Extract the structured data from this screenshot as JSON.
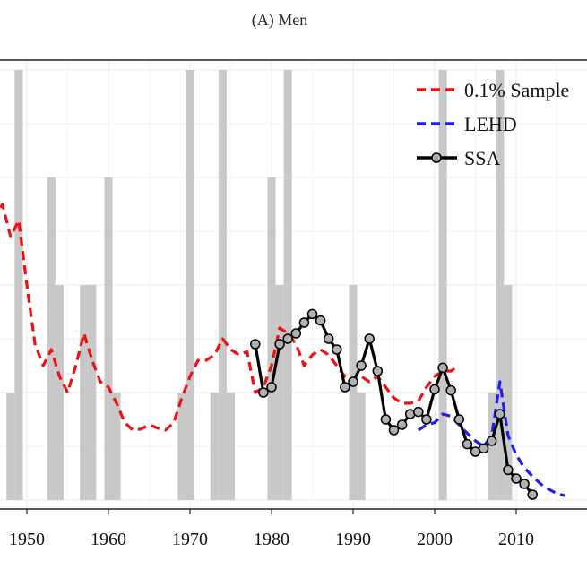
{
  "chart_data": {
    "type": "line",
    "title": "(A) Men",
    "xlabel": "",
    "ylabel": "",
    "xlim": [
      1945.5,
      2016
    ],
    "ylim": [
      0,
      4.6
    ],
    "x_ticks": [
      1950,
      1960,
      1970,
      1980,
      1990,
      2000,
      2010
    ],
    "x_tick_labels": [
      "1950",
      "1960",
      "1970",
      "1980",
      "1990",
      "2000",
      "2010"
    ],
    "grid": true,
    "legend_position": "top-right",
    "recession_bars": {
      "color": "#c8c8c8",
      "bars": [
        {
          "year": 1948,
          "height": 1.0
        },
        {
          "year": 1949,
          "height": 4.0
        },
        {
          "year": 1953,
          "height": 3.0
        },
        {
          "year": 1954,
          "height": 2.0
        },
        {
          "year": 1957,
          "height": 2.0
        },
        {
          "year": 1958,
          "height": 2.0
        },
        {
          "year": 1960,
          "height": 3.0
        },
        {
          "year": 1961,
          "height": 1.0
        },
        {
          "year": 1969,
          "height": 1.0
        },
        {
          "year": 1970,
          "height": 4.0
        },
        {
          "year": 1973,
          "height": 1.0
        },
        {
          "year": 1974,
          "height": 4.0
        },
        {
          "year": 1975,
          "height": 1.0
        },
        {
          "year": 1980,
          "height": 3.0
        },
        {
          "year": 1981,
          "height": 2.0
        },
        {
          "year": 1982,
          "height": 4.0
        },
        {
          "year": 1990,
          "height": 2.0
        },
        {
          "year": 1991,
          "height": 1.0
        },
        {
          "year": 2001,
          "height": 4.0
        },
        {
          "year": 2007,
          "height": 1.0
        },
        {
          "year": 2008,
          "height": 4.0
        },
        {
          "year": 2009,
          "height": 2.0
        }
      ]
    },
    "series": [
      {
        "name": "0.1% Sample",
        "color": "#ee1111",
        "style": "dashed",
        "x": [
          1946,
          1947,
          1948,
          1949,
          1950,
          1951,
          1952,
          1953,
          1954,
          1955,
          1956,
          1957,
          1958,
          1959,
          1960,
          1961,
          1962,
          1963,
          1964,
          1965,
          1966,
          1967,
          1968,
          1969,
          1970,
          1971,
          1972,
          1973,
          1974,
          1975,
          1976,
          1977,
          1978,
          1979,
          1980,
          1981,
          1982,
          1983,
          1984,
          1985,
          1986,
          1987,
          1988,
          1989,
          1990,
          1991,
          1992,
          1993,
          1994,
          1995,
          1996,
          1997,
          1998,
          1999,
          2000,
          2001,
          2002,
          2003
        ],
        "y": [
          2.6,
          2.75,
          2.45,
          2.6,
          2.0,
          1.45,
          1.25,
          1.4,
          1.15,
          1.0,
          1.25,
          1.55,
          1.3,
          1.1,
          1.05,
          0.9,
          0.72,
          0.65,
          0.66,
          0.7,
          0.67,
          0.65,
          0.72,
          0.95,
          1.15,
          1.3,
          1.3,
          1.35,
          1.5,
          1.4,
          1.35,
          1.38,
          1.0,
          1.05,
          1.25,
          1.6,
          1.55,
          1.45,
          1.25,
          1.35,
          1.4,
          1.35,
          1.25,
          1.15,
          1.1,
          1.15,
          1.1,
          1.15,
          1.05,
          0.95,
          0.9,
          0.9,
          0.92,
          1.05,
          1.15,
          1.2,
          1.2,
          1.25
        ]
      },
      {
        "name": "LEHD",
        "color": "#1f1fee",
        "style": "dashed",
        "x": [
          1998,
          1999,
          2000,
          2001,
          2002,
          2003,
          2004,
          2005,
          2006,
          2007,
          2008,
          2009,
          2010,
          2011,
          2012,
          2013,
          2014,
          2015,
          2016
        ],
        "y": [
          0.65,
          0.7,
          0.72,
          0.8,
          0.78,
          0.7,
          0.62,
          0.55,
          0.5,
          0.6,
          1.1,
          0.6,
          0.42,
          0.3,
          0.22,
          0.15,
          0.1,
          0.06,
          0.04
        ]
      },
      {
        "name": "SSA",
        "color": "#000000",
        "marker_color": "#b0b0b0",
        "style": "solid-markers",
        "x": [
          1978,
          1979,
          1980,
          1981,
          1982,
          1983,
          1984,
          1985,
          1986,
          1987,
          1988,
          1989,
          1990,
          1991,
          1992,
          1993,
          1994,
          1995,
          1996,
          1997,
          1998,
          1999,
          2000,
          2001,
          2002,
          2003,
          2004,
          2005,
          2006,
          2007,
          2008,
          2009,
          2010,
          2011,
          2012
        ],
        "y": [
          1.45,
          1.0,
          1.05,
          1.45,
          1.5,
          1.55,
          1.65,
          1.73,
          1.67,
          1.5,
          1.4,
          1.05,
          1.1,
          1.25,
          1.5,
          1.2,
          0.75,
          0.65,
          0.7,
          0.8,
          0.82,
          0.75,
          1.03,
          1.23,
          1.02,
          0.75,
          0.52,
          0.45,
          0.48,
          0.55,
          0.8,
          0.28,
          0.2,
          0.15,
          0.05
        ]
      }
    ],
    "legend": [
      "0.1% Sample",
      "LEHD",
      "SSA"
    ]
  }
}
